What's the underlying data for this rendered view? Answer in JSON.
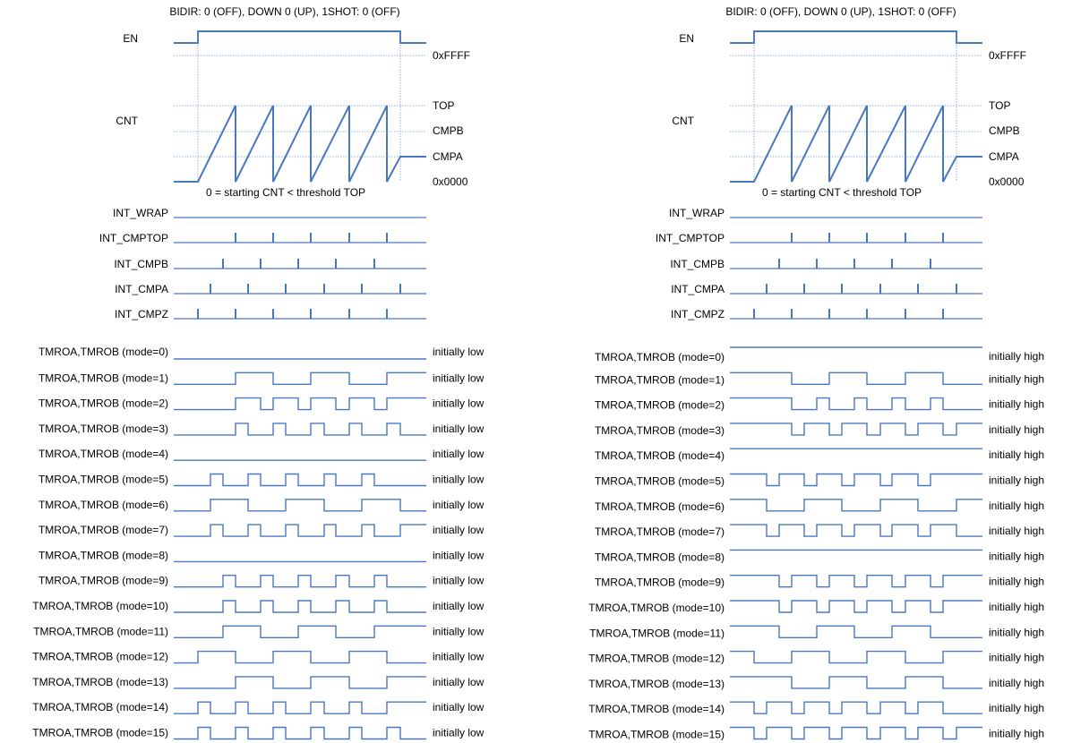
{
  "colors": {
    "wave": "#4a78c0",
    "guide": "#7a9ad0",
    "text": "#000000"
  },
  "panels": [
    {
      "id": "left",
      "header": "BIDIR: 0 (OFF), DOWN 0 (UP), 1SHOT: 0 (OFF)",
      "en_label": "EN",
      "cnt_label": "CNT",
      "level_labels": {
        "ffff": "0xFFFF",
        "top": "TOP",
        "cmpb": "CMPB",
        "cmpa": "CMPA",
        "zero": "0x0000"
      },
      "note": "0 = starting CNT < threshold TOP",
      "interrupts": [
        {
          "label": "INT_WRAP",
          "pulses": "none"
        },
        {
          "label": "INT_CMPTOP",
          "pulses": "top"
        },
        {
          "label": "INT_CMPB",
          "pulses": "cmpb"
        },
        {
          "label": "INT_CMPA",
          "pulses": "cmpa"
        },
        {
          "label": "INT_CMPZ",
          "pulses": "zero"
        }
      ],
      "outputs": [
        {
          "label": "TMROA,TMROB (mode=0)",
          "status": "initially low"
        },
        {
          "label": "TMROA,TMROB (mode=1)",
          "status": "initially low"
        },
        {
          "label": "TMROA,TMROB (mode=2)",
          "status": "initially low"
        },
        {
          "label": "TMROA,TMROB (mode=3)",
          "status": "initially low"
        },
        {
          "label": "TMROA,TMROB (mode=4)",
          "status": "initially low"
        },
        {
          "label": "TMROA,TMROB (mode=5)",
          "status": "initially low"
        },
        {
          "label": "TMROA,TMROB (mode=6)",
          "status": "initially low"
        },
        {
          "label": "TMROA,TMROB (mode=7)",
          "status": "initially low"
        },
        {
          "label": "TMROA,TMROB (mode=8)",
          "status": "initially low"
        },
        {
          "label": "TMROA,TMROB (mode=9)",
          "status": "initially low"
        },
        {
          "label": "TMROA,TMROB (mode=10)",
          "status": "initially low"
        },
        {
          "label": "TMROA,TMROB (mode=11)",
          "status": "initially low"
        },
        {
          "label": "TMROA,TMROB (mode=12)",
          "status": "initially low"
        },
        {
          "label": "TMROA,TMROB (mode=13)",
          "status": "initially low"
        },
        {
          "label": "TMROA,TMROB (mode=14)",
          "status": "initially low"
        },
        {
          "label": "TMROA,TMROB (mode=15)",
          "status": "initially low"
        }
      ]
    },
    {
      "id": "right",
      "header": "BIDIR: 0 (OFF), DOWN 0 (UP), 1SHOT: 0 (OFF)",
      "en_label": "EN",
      "cnt_label": "CNT",
      "level_labels": {
        "ffff": "0xFFFF",
        "top": "TOP",
        "cmpb": "CMPB",
        "cmpa": "CMPA",
        "zero": "0x0000"
      },
      "note": "0 = starting CNT < threshold TOP",
      "interrupts": [
        {
          "label": "INT_WRAP",
          "pulses": "none"
        },
        {
          "label": "INT_CMPTOP",
          "pulses": "top"
        },
        {
          "label": "INT_CMPB",
          "pulses": "cmpb"
        },
        {
          "label": "INT_CMPA",
          "pulses": "cmpa"
        },
        {
          "label": "INT_CMPZ",
          "pulses": "zero"
        }
      ],
      "outputs": [
        {
          "label": "TMROA,TMROB (mode=0)",
          "status": "initially high"
        },
        {
          "label": "TMROA,TMROB (mode=1)",
          "status": "initially high"
        },
        {
          "label": "TMROA,TMROB (mode=2)",
          "status": "initially high"
        },
        {
          "label": "TMROA,TMROB (mode=3)",
          "status": "initially high"
        },
        {
          "label": "TMROA,TMROB (mode=4)",
          "status": "initially high"
        },
        {
          "label": "TMROA,TMROB (mode=5)",
          "status": "initially high"
        },
        {
          "label": "TMROA,TMROB (mode=6)",
          "status": "initially high"
        },
        {
          "label": "TMROA,TMROB (mode=7)",
          "status": "initially high"
        },
        {
          "label": "TMROA,TMROB (mode=8)",
          "status": "initially high"
        },
        {
          "label": "TMROA,TMROB (mode=9)",
          "status": "initially high"
        },
        {
          "label": "TMROA,TMROB (mode=10)",
          "status": "initially high"
        },
        {
          "label": "TMROA,TMROB (mode=11)",
          "status": "initially high"
        },
        {
          "label": "TMROA,TMROB (mode=12)",
          "status": "initially high"
        },
        {
          "label": "TMROA,TMROB (mode=13)",
          "status": "initially high"
        },
        {
          "label": "TMROA,TMROB (mode=14)",
          "status": "initially high"
        },
        {
          "label": "TMROA,TMROB (mode=15)",
          "status": "initially high"
        }
      ]
    }
  ]
}
